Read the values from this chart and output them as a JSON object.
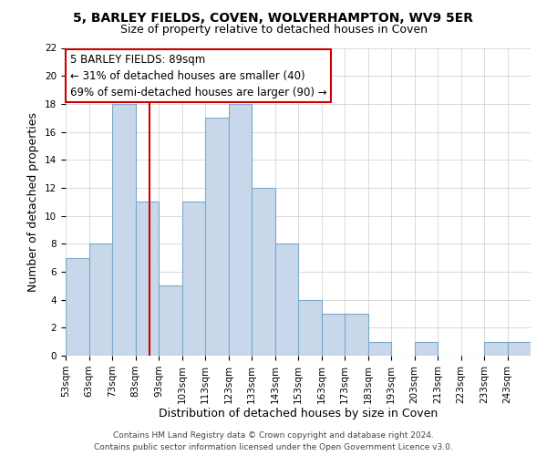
{
  "title": "5, BARLEY FIELDS, COVEN, WOLVERHAMPTON, WV9 5ER",
  "subtitle": "Size of property relative to detached houses in Coven",
  "xlabel": "Distribution of detached houses by size in Coven",
  "ylabel": "Number of detached properties",
  "bin_edges": [
    53,
    63,
    73,
    83,
    93,
    103,
    113,
    123,
    133,
    143,
    153,
    163,
    173,
    183,
    193,
    203,
    213,
    223,
    233,
    243,
    253
  ],
  "bar_heights": [
    7,
    8,
    18,
    11,
    5,
    11,
    17,
    18,
    12,
    8,
    4,
    3,
    3,
    1,
    0,
    1,
    0,
    0,
    1,
    1
  ],
  "bar_color": "#c8d8ea",
  "bar_edgecolor": "#7aaac8",
  "ylim": [
    0,
    22
  ],
  "yticks": [
    0,
    2,
    4,
    6,
    8,
    10,
    12,
    14,
    16,
    18,
    20,
    22
  ],
  "property_size": 89,
  "red_line_color": "#cc0000",
  "annotation_title": "5 BARLEY FIELDS: 89sqm",
  "annotation_line1": "← 31% of detached houses are smaller (40)",
  "annotation_line2": "69% of semi-detached houses are larger (90) →",
  "footer_line1": "Contains HM Land Registry data © Crown copyright and database right 2024.",
  "footer_line2": "Contains public sector information licensed under the Open Government Licence v3.0.",
  "background_color": "#ffffff",
  "grid_color": "#cccccc",
  "title_fontsize": 10,
  "subtitle_fontsize": 9,
  "axis_label_fontsize": 9,
  "tick_fontsize": 7.5,
  "annotation_fontsize": 8.5,
  "footer_fontsize": 6.5
}
